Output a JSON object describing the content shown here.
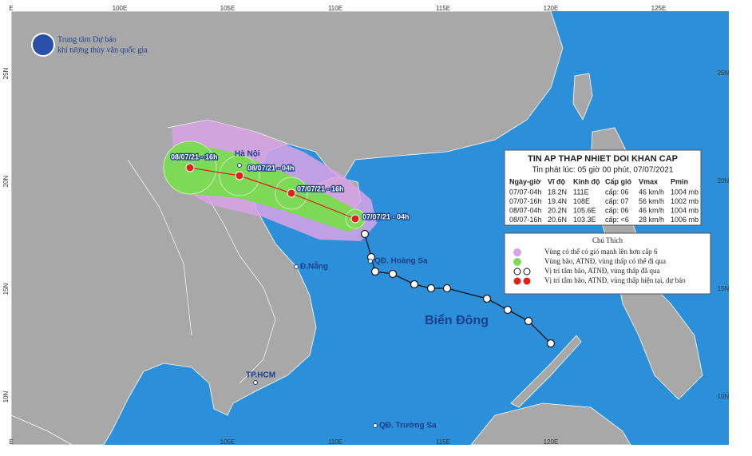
{
  "axes": {
    "top": [
      "E",
      "100E",
      "105E",
      "110E",
      "115E",
      "120E",
      "125E"
    ],
    "bottom": [
      "E",
      "105E",
      "110E",
      "115E",
      "120E"
    ],
    "left": [
      "25N",
      "20N",
      "15N",
      "10N"
    ],
    "right": [
      "25N",
      "20N",
      "15N",
      "10N"
    ]
  },
  "logo": {
    "line1": "Trung tâm Dự báo",
    "line2": "khí tượng thủy văn quốc gia"
  },
  "places": [
    "Hà Nội",
    "Đ.Nẵng",
    "QĐ. Hoàng Sa",
    "Biển Đông",
    "TP.HCM",
    "QĐ. Trường Sa"
  ],
  "track_labels": [
    "08/07/21 - 16h",
    "08/07/21 - 04h",
    "07/07/21 - 16h",
    "07/07/21 - 04h"
  ],
  "bulletin": {
    "title": "TIN AP THAP NHIET DOI KHAN CAP",
    "issued": "Tin phát lúc: 05 giờ 00 phút, 07/07/2021",
    "columns": [
      "Ngày-giờ",
      "Vĩ độ",
      "Kinh độ",
      "Cấp gió",
      "Vmax",
      "Pmin"
    ],
    "rows": [
      [
        "07/07-04h",
        "18.2N",
        "111E",
        "cấp: 06",
        "46 km/h",
        "1004 mb"
      ],
      [
        "07/07-16h",
        "19.4N",
        "108E",
        "cấp: 07",
        "56 km/h",
        "1002 mb"
      ],
      [
        "08/07-04h",
        "20.2N",
        "105.6E",
        "cấp: 06",
        "46 km/h",
        "1004 mb"
      ],
      [
        "08/07-16h",
        "20.6N",
        "103.3E",
        "cấp: <6",
        "28 km/h",
        "1006 mb"
      ]
    ]
  },
  "legend": {
    "title": "Chú Thích",
    "items": [
      "Vùng có thể có gió mạnh lên hơn cấp 6",
      "Vùng bão, ATNĐ, vùng thấp có thể đi qua",
      "Vị trí tâm bão, ATNĐ, vùng thấp đã qua",
      "Vị trí tâm bão, ATNĐ, vùng thấp hiện tại, dự báo"
    ]
  }
}
